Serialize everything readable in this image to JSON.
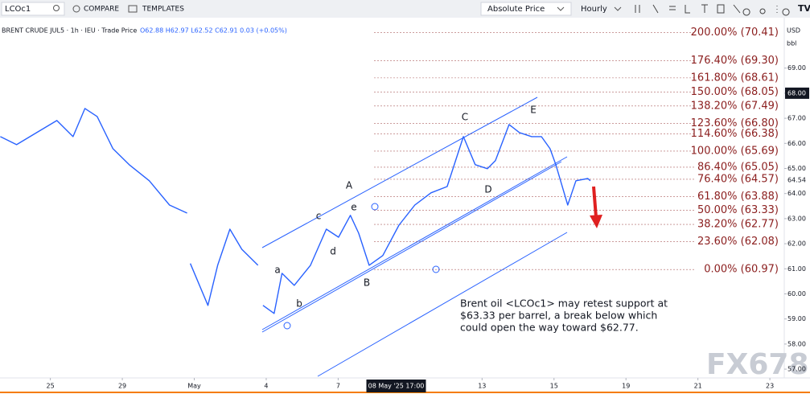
{
  "toolbar": {
    "symbol": "LCOc1",
    "compare": "COMPARE",
    "templates": "TEMPLATES",
    "price_mode": "Absolute Price",
    "interval": "Hourly"
  },
  "chart_data": {
    "type": "line",
    "title": "BRENT CRUDE JUL5 · 1h · IEU · Trade Price",
    "subtitle": "O62.88 H62.97 L62.52 C62.91 0.03 (+0.05%)",
    "currency": "USD",
    "unit": "bbl",
    "x": [
      -1.39,
      -0.94,
      -0.38,
      0.18,
      0.63,
      0.96,
      1.3,
      1.74,
      2.19,
      2.75,
      3.31,
      3.8,
      3.85,
      3.89,
      4.38,
      4.65,
      4.99,
      5.32,
      5.77,
      5.84,
      5.91,
      6.22,
      6.44,
      6.78,
      7.23,
      7.67,
      8.01,
      8.34,
      8.57,
      8.86,
      9.24,
      9.69,
      10.13,
      10.58,
      11.03,
      11.48,
      11.81,
      12.15,
      12.37,
      12.75,
      13.04,
      13.38,
      13.65,
      13.89,
      14.05,
      14.38,
      14.61,
      14.94,
      15.01
    ],
    "series": [
      {
        "name": "LCOc1",
        "color": "#2962ff",
        "values": [
          66.27,
          65.95,
          66.43,
          66.91,
          66.27,
          67.39,
          67.07,
          65.79,
          65.15,
          64.51,
          63.54,
          63.22,
          null,
          61.21,
          59.54,
          61.14,
          62.58,
          61.78,
          61.14,
          null,
          59.54,
          59.22,
          60.82,
          60.34,
          61.14,
          62.58,
          62.26,
          63.13,
          62.42,
          61.14,
          61.53,
          62.74,
          63.54,
          64.03,
          64.28,
          66.27,
          65.15,
          64.99,
          65.31,
          66.75,
          66.43,
          66.27,
          66.27,
          65.79,
          65.15,
          63.54,
          64.51,
          64.6,
          64.51
        ]
      }
    ],
    "xlim": [
      -1.4,
      20.4
    ],
    "ylim": [
      56.65,
      71.01
    ],
    "xticks": [
      {
        "value": 0,
        "label": "25"
      },
      {
        "value": 2,
        "label": "29"
      },
      {
        "value": 4,
        "label": "May"
      },
      {
        "value": 6,
        "label": "4"
      },
      {
        "value": 8,
        "label": "7"
      },
      {
        "value": 12,
        "label": "13"
      },
      {
        "value": 14,
        "label": "15"
      },
      {
        "value": 16,
        "label": "19"
      },
      {
        "value": 18,
        "label": "21"
      },
      {
        "value": 20,
        "label": "23"
      }
    ],
    "yticks": [
      {
        "value": 57,
        "label": "57.00"
      },
      {
        "value": 58,
        "label": "58.00"
      },
      {
        "value": 59,
        "label": "59.00"
      },
      {
        "value": 60,
        "label": "60.00"
      },
      {
        "value": 61,
        "label": "61.00"
      },
      {
        "value": 62,
        "label": "62.00"
      },
      {
        "value": 63,
        "label": "63.00"
      },
      {
        "value": 64,
        "label": "64.00"
      },
      {
        "value": 65,
        "label": "65.00"
      },
      {
        "value": 66,
        "label": "66.00"
      },
      {
        "value": 67,
        "label": "67.00"
      },
      {
        "value": 68,
        "label": "68.00"
      },
      {
        "value": 69,
        "label": "69.00"
      }
    ],
    "crosshair_x": {
      "value": 9.5,
      "label": "08 May '25 17:00"
    },
    "marked_price": {
      "value": 68,
      "label": "68.00"
    },
    "last_price": 64.54,
    "fib_levels": [
      {
        "value": 70.41,
        "label": "200.00% (70.41)"
      },
      {
        "value": 69.3,
        "label": "176.40% (69.30)"
      },
      {
        "value": 68.61,
        "label": "161.80% (68.61)"
      },
      {
        "value": 68.05,
        "label": "150.00% (68.05)"
      },
      {
        "value": 67.49,
        "label": "138.20% (67.49)"
      },
      {
        "value": 66.8,
        "label": "123.60% (66.80)"
      },
      {
        "value": 66.38,
        "label": "114.60% (66.38)"
      },
      {
        "value": 65.69,
        "label": "100.00% (65.69)"
      },
      {
        "value": 65.05,
        "label": "86.40% (65.05)"
      },
      {
        "value": 64.57,
        "label": "76.40% (64.57)"
      },
      {
        "value": 63.88,
        "label": "61.80% (63.88)"
      },
      {
        "value": 63.33,
        "label": "50.00% (63.33)"
      },
      {
        "value": 62.77,
        "label": "38.20% (62.77)"
      },
      {
        "value": 62.08,
        "label": "23.60% (62.08)"
      },
      {
        "value": 60.97,
        "label": "0.00% (60.97)"
      }
    ],
    "fib_color": "#8b1e1e",
    "wave_labels": [
      "a",
      "b",
      "c",
      "d",
      "e",
      "A",
      "B",
      "C",
      "D",
      "E"
    ],
    "note": [
      "Brent oil <LCOc1> may retest support at",
      "$63.33 per barrel, a break below which",
      "could open the way toward $62.77."
    ],
    "watermark": "FX678",
    "grid": false
  }
}
